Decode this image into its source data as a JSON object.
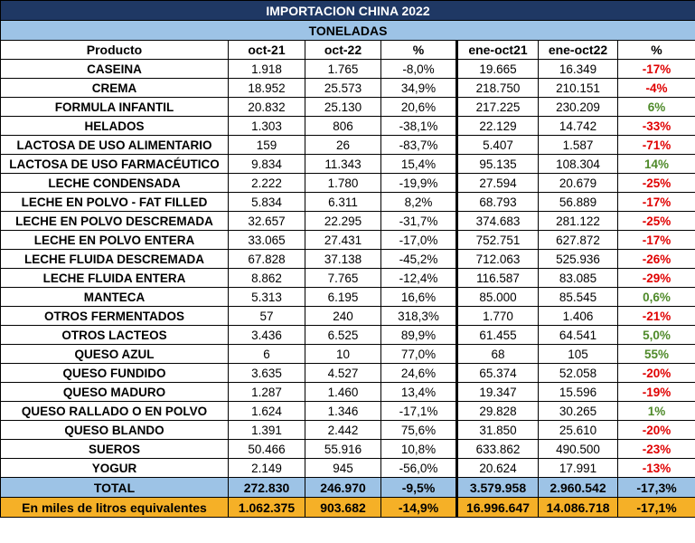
{
  "title": "IMPORTACION CHINA 2022",
  "subtitle": "TONELADAS",
  "headers": [
    "Producto",
    "oct-21",
    "oct-22",
    "%",
    "ene-oct21",
    "ene-oct22",
    "%"
  ],
  "rows": [
    {
      "product": "CASEINA",
      "oct21": "1.918",
      "oct22": "1.765",
      "pct": "-8,0%",
      "ytd21": "19.665",
      "ytd22": "16.349",
      "ytd_pct": "-17%",
      "dir": "neg"
    },
    {
      "product": "CREMA",
      "oct21": "18.952",
      "oct22": "25.573",
      "pct": "34,9%",
      "ytd21": "218.750",
      "ytd22": "210.151",
      "ytd_pct": "-4%",
      "dir": "neg"
    },
    {
      "product": "FORMULA INFANTIL",
      "oct21": "20.832",
      "oct22": "25.130",
      "pct": "20,6%",
      "ytd21": "217.225",
      "ytd22": "230.209",
      "ytd_pct": "6%",
      "dir": "pos"
    },
    {
      "product": "HELADOS",
      "oct21": "1.303",
      "oct22": "806",
      "pct": "-38,1%",
      "ytd21": "22.129",
      "ytd22": "14.742",
      "ytd_pct": "-33%",
      "dir": "neg"
    },
    {
      "product": "LACTOSA DE USO ALIMENTARIO",
      "oct21": "159",
      "oct22": "26",
      "pct": "-83,7%",
      "ytd21": "5.407",
      "ytd22": "1.587",
      "ytd_pct": "-71%",
      "dir": "neg"
    },
    {
      "product": "LACTOSA DE USO FARMACÉUTICO",
      "oct21": "9.834",
      "oct22": "11.343",
      "pct": "15,4%",
      "ytd21": "95.135",
      "ytd22": "108.304",
      "ytd_pct": "14%",
      "dir": "pos"
    },
    {
      "product": "LECHE CONDENSADA",
      "oct21": "2.222",
      "oct22": "1.780",
      "pct": "-19,9%",
      "ytd21": "27.594",
      "ytd22": "20.679",
      "ytd_pct": "-25%",
      "dir": "neg"
    },
    {
      "product": "LECHE EN POLVO - FAT FILLED",
      "oct21": "5.834",
      "oct22": "6.311",
      "pct": "8,2%",
      "ytd21": "68.793",
      "ytd22": "56.889",
      "ytd_pct": "-17%",
      "dir": "neg"
    },
    {
      "product": "LECHE EN POLVO DESCREMADA",
      "oct21": "32.657",
      "oct22": "22.295",
      "pct": "-31,7%",
      "ytd21": "374.683",
      "ytd22": "281.122",
      "ytd_pct": "-25%",
      "dir": "neg"
    },
    {
      "product": "LECHE EN POLVO ENTERA",
      "oct21": "33.065",
      "oct22": "27.431",
      "pct": "-17,0%",
      "ytd21": "752.751",
      "ytd22": "627.872",
      "ytd_pct": "-17%",
      "dir": "neg"
    },
    {
      "product": "LECHE FLUIDA DESCREMADA",
      "oct21": "67.828",
      "oct22": "37.138",
      "pct": "-45,2%",
      "ytd21": "712.063",
      "ytd22": "525.936",
      "ytd_pct": "-26%",
      "dir": "neg"
    },
    {
      "product": "LECHE FLUIDA ENTERA",
      "oct21": "8.862",
      "oct22": "7.765",
      "pct": "-12,4%",
      "ytd21": "116.587",
      "ytd22": "83.085",
      "ytd_pct": "-29%",
      "dir": "neg"
    },
    {
      "product": "MANTECA",
      "oct21": "5.313",
      "oct22": "6.195",
      "pct": "16,6%",
      "ytd21": "85.000",
      "ytd22": "85.545",
      "ytd_pct": "0,6%",
      "dir": "pos"
    },
    {
      "product": "OTROS FERMENTADOS",
      "oct21": "57",
      "oct22": "240",
      "pct": "318,3%",
      "ytd21": "1.770",
      "ytd22": "1.406",
      "ytd_pct": "-21%",
      "dir": "neg"
    },
    {
      "product": "OTROS LACTEOS",
      "oct21": "3.436",
      "oct22": "6.525",
      "pct": "89,9%",
      "ytd21": "61.455",
      "ytd22": "64.541",
      "ytd_pct": "5,0%",
      "dir": "pos"
    },
    {
      "product": "QUESO AZUL",
      "oct21": "6",
      "oct22": "10",
      "pct": "77,0%",
      "ytd21": "68",
      "ytd22": "105",
      "ytd_pct": "55%",
      "dir": "pos"
    },
    {
      "product": "QUESO FUNDIDO",
      "oct21": "3.635",
      "oct22": "4.527",
      "pct": "24,6%",
      "ytd21": "65.374",
      "ytd22": "52.058",
      "ytd_pct": "-20%",
      "dir": "neg"
    },
    {
      "product": "QUESO MADURO",
      "oct21": "1.287",
      "oct22": "1.460",
      "pct": "13,4%",
      "ytd21": "19.347",
      "ytd22": "15.596",
      "ytd_pct": "-19%",
      "dir": "neg"
    },
    {
      "product": "QUESO RALLADO O EN POLVO",
      "oct21": "1.624",
      "oct22": "1.346",
      "pct": "-17,1%",
      "ytd21": "29.828",
      "ytd22": "30.265",
      "ytd_pct": "1%",
      "dir": "pos"
    },
    {
      "product": "QUESO BLANDO",
      "oct21": "1.391",
      "oct22": "2.442",
      "pct": "75,6%",
      "ytd21": "31.850",
      "ytd22": "25.610",
      "ytd_pct": "-20%",
      "dir": "neg"
    },
    {
      "product": "SUEROS",
      "oct21": "50.466",
      "oct22": "55.916",
      "pct": "10,8%",
      "ytd21": "633.862",
      "ytd22": "490.500",
      "ytd_pct": "-23%",
      "dir": "neg"
    },
    {
      "product": "YOGUR",
      "oct21": "2.149",
      "oct22": "945",
      "pct": "-56,0%",
      "ytd21": "20.624",
      "ytd22": "17.991",
      "ytd_pct": "-13%",
      "dir": "neg"
    }
  ],
  "total": {
    "label": "TOTAL",
    "oct21": "272.830",
    "oct22": "246.970",
    "pct": "-9,5%",
    "ytd21": "3.579.958",
    "ytd22": "2.960.542",
    "ytd_pct": "-17,3%"
  },
  "liters": {
    "label": "En miles de litros equivalentes",
    "oct21": "1.062.375",
    "oct22": "903.682",
    "pct": "-14,9%",
    "ytd21": "16.996.647",
    "ytd22": "14.086.718",
    "ytd_pct": "-17,1%"
  },
  "colors": {
    "title_bg": "#1f3864",
    "subtitle_bg": "#9dc3e6",
    "total_bg": "#9dc3e6",
    "liters_bg": "#f5b027",
    "negative": "#e00000",
    "positive": "#4f8a2a"
  }
}
